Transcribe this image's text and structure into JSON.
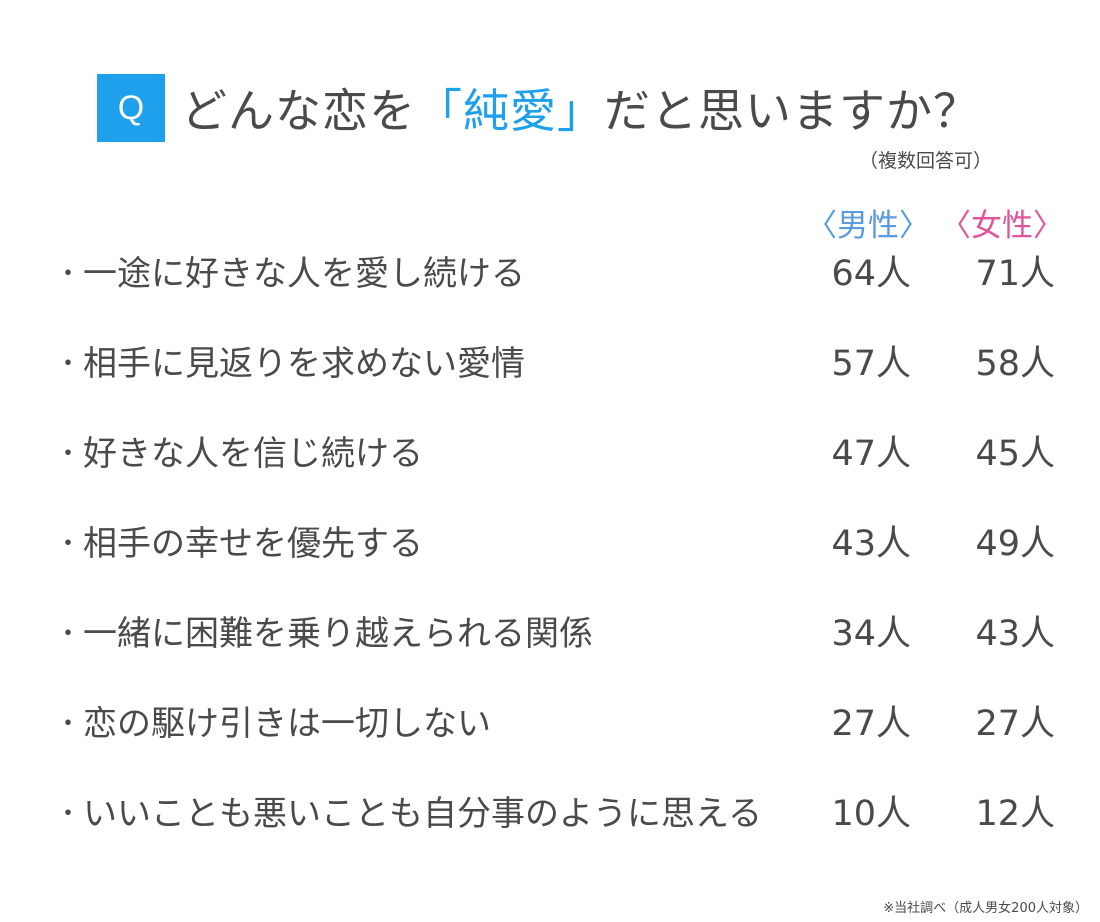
{
  "header": {
    "q_label": "Q",
    "title_before": "どんな恋を",
    "title_highlight": "「純愛」",
    "title_after": "だと思いますか？",
    "note": "（複数回答可）"
  },
  "legend": {
    "male": "〈男性〉",
    "female": "〈女性〉"
  },
  "colors": {
    "accent": "#1ea0ec",
    "male": "#5a9be0",
    "female": "#e0559c",
    "text": "#4a4a4a"
  },
  "rows": [
    {
      "bullet": "・",
      "label": "一途に好きな人を愛し続ける",
      "male": "64人",
      "female": "71人"
    },
    {
      "bullet": "・",
      "label": "相手に見返りを求めない愛情",
      "male": "57人",
      "female": "58人"
    },
    {
      "bullet": "・",
      "label": "好きな人を信じ続ける",
      "male": "47人",
      "female": "45人"
    },
    {
      "bullet": "・",
      "label": "相手の幸せを優先する",
      "male": "43人",
      "female": "49人"
    },
    {
      "bullet": "・",
      "label": "一緒に困難を乗り越えられる関係",
      "male": "34人",
      "female": "43人"
    },
    {
      "bullet": "・",
      "label": "恋の駆け引きは一切しない",
      "male": "27人",
      "female": "27人"
    },
    {
      "bullet": "・",
      "label": "いいことも悪いことも自分事のように思える",
      "male": "10人",
      "female": "12人"
    }
  ],
  "source": "※当社調べ（成人男女200人対象）",
  "chart_data": {
    "type": "table",
    "title": "どんな恋を「純愛」だと思いますか？",
    "subtitle": "（複数回答可）",
    "columns": [
      "回答",
      "男性",
      "女性"
    ],
    "categories": [
      "一途に好きな人を愛し続ける",
      "相手に見返りを求めない愛情",
      "好きな人を信じ続ける",
      "相手の幸せを優先する",
      "一緒に困難を乗り越えられる関係",
      "恋の駆け引きは一切しない",
      "いいことも悪いことも自分事のように思える"
    ],
    "series": [
      {
        "name": "男性",
        "values": [
          64,
          57,
          47,
          43,
          34,
          27,
          10
        ]
      },
      {
        "name": "女性",
        "values": [
          71,
          58,
          45,
          49,
          43,
          27,
          12
        ]
      }
    ],
    "unit": "人",
    "annotation": "※当社調べ（成人男女200人対象）"
  }
}
